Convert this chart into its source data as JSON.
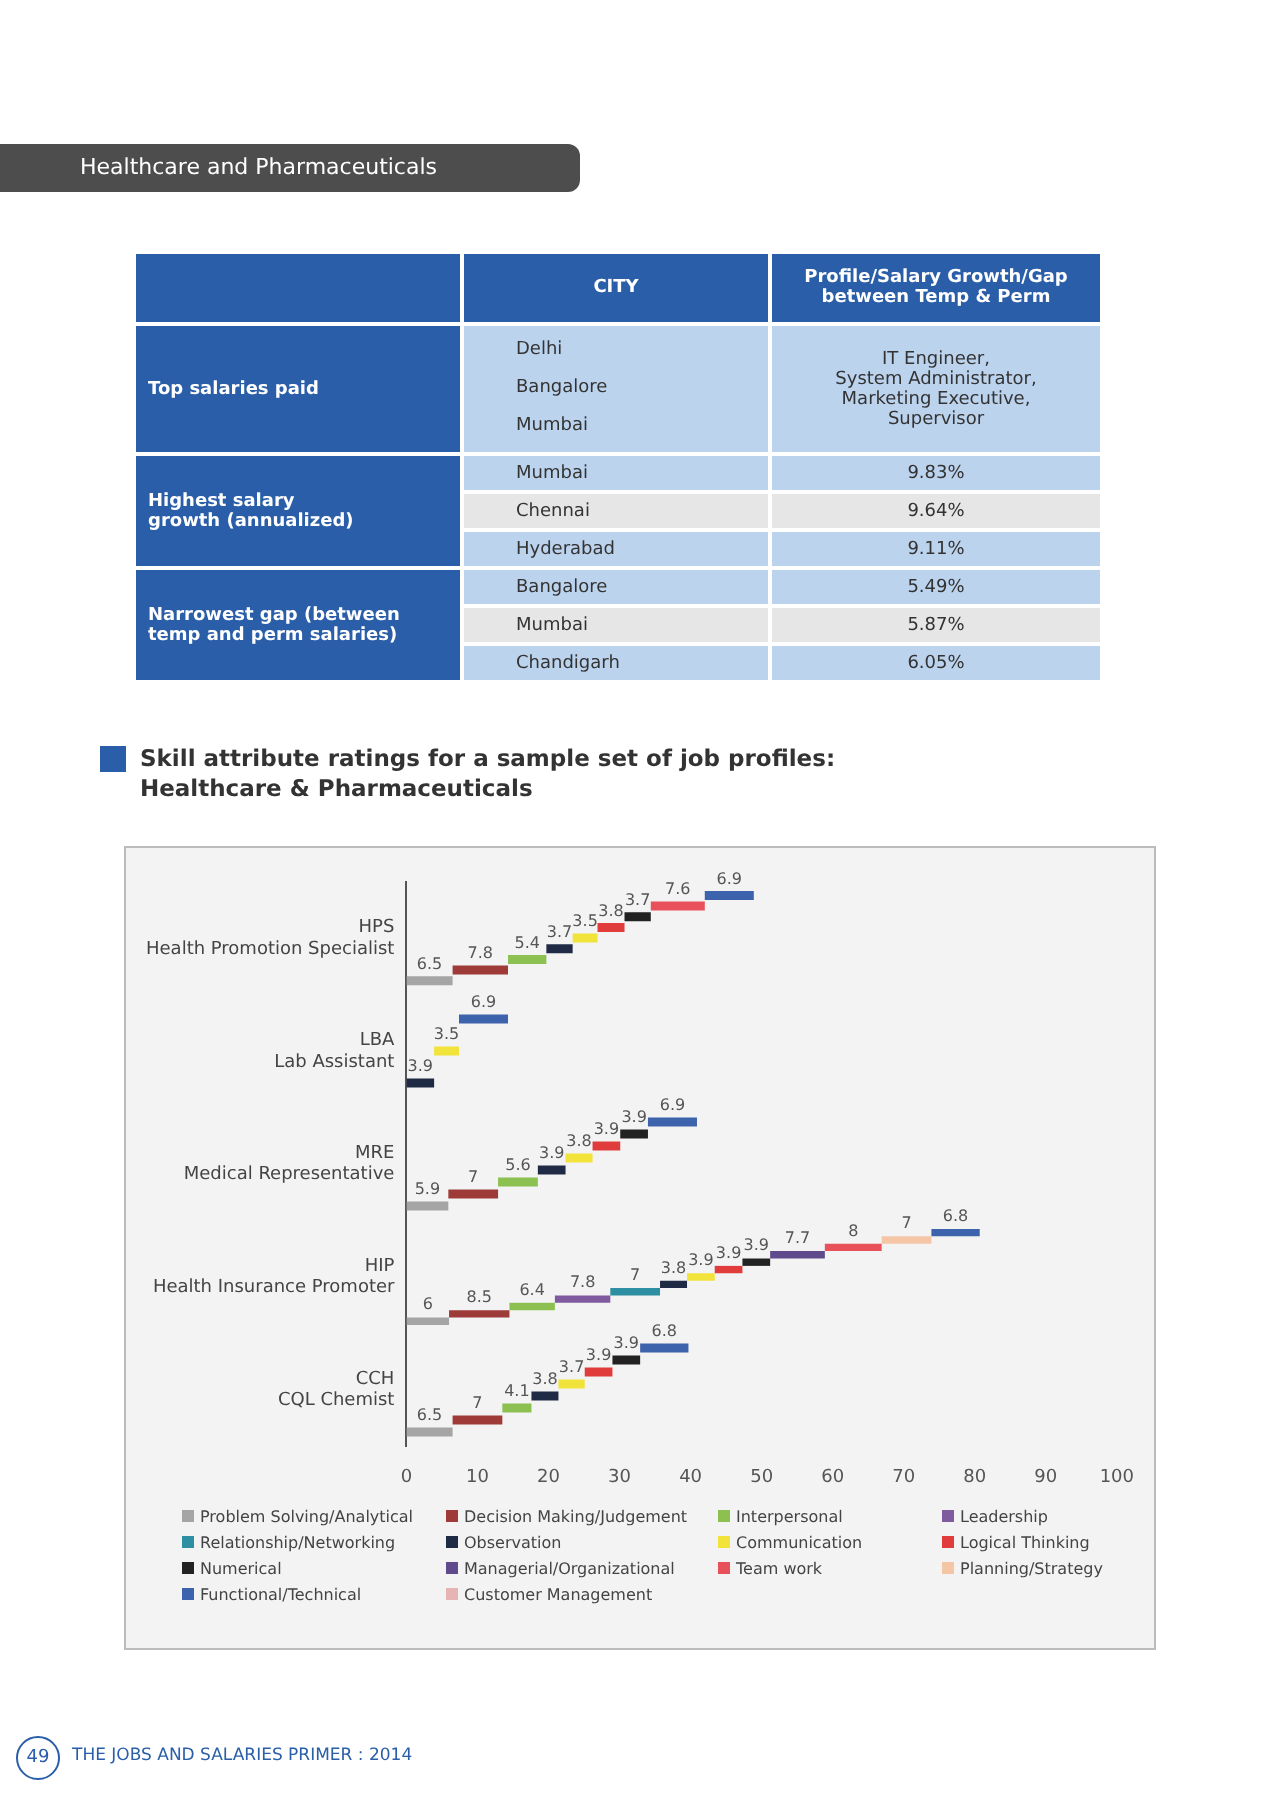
{
  "chart_data": [
    {
      "type": "other",
      "title": "Healthcare and Pharmaceuticals",
      "annotations": [
        "CITY",
        "Profile/Salary Growth/Gap between Temp & Perm",
        "Top salaries paid",
        "Delhi\nBangalore\nMumbai",
        "IT Engineer,\nSystem Administrator,\nMarketing Executive,\nSupervisor",
        "Highest salary\ngrowth (annualized)",
        "Mumbai",
        "9.83%",
        "Chennai",
        "9.64%",
        "Hyderabad",
        "9.11%",
        "Narrowest gap (between\ntemp and perm salaries)",
        "Bangalore",
        "5.49%",
        "Mumbai",
        "5.87%",
        "Chandigarh",
        "6.05%",
        "49",
        "THE JOBS AND SALARIES PRIMER : 2014"
      ]
    },
    {
      "type": "bar",
      "orientation": "horizontal",
      "stacked": true,
      "title": "Skill attribute ratings for a sample set of job profiles:\nHealthcare & Pharmaceuticals",
      "categories": [
        "HPS\nHealth Promotion Specialist",
        "LBA\nLab Assistant",
        "MRE\nMedical Representative",
        "HIP\nHealth Insurance Promoter",
        "CCH\nCQL Chemist"
      ],
      "series": [
        {
          "name": "Problem Solving/Analytical",
          "color": "#a5a5a5",
          "values": [
            6.5,
            null,
            5.9,
            6,
            6.5
          ]
        },
        {
          "name": "Decision Making/Judgement",
          "color": "#9e3a38",
          "values": [
            7.8,
            null,
            7,
            8.5,
            7
          ]
        },
        {
          "name": "Interpersonal",
          "color": "#8cc152",
          "values": [
            5.4,
            null,
            5.6,
            6.4,
            4.1
          ]
        },
        {
          "name": "Leadership",
          "color": "#7e5a9e",
          "values": [
            null,
            null,
            null,
            7.8,
            null
          ]
        },
        {
          "name": "Relationship/Networking",
          "color": "#2e8fa3",
          "values": [
            null,
            null,
            null,
            7,
            null
          ]
        },
        {
          "name": "Observation",
          "color": "#1f2a44",
          "values": [
            3.7,
            3.9,
            3.9,
            3.8,
            3.8
          ]
        },
        {
          "name": "Communication",
          "color": "#f2e33a",
          "values": [
            3.5,
            3.5,
            3.8,
            3.9,
            3.7
          ]
        },
        {
          "name": "Logical Thinking",
          "color": "#e03c3c",
          "values": [
            3.8,
            null,
            3.9,
            3.9,
            3.9
          ]
        },
        {
          "name": "Numerical",
          "color": "#222222",
          "values": [
            3.7,
            null,
            3.9,
            3.9,
            3.9
          ]
        },
        {
          "name": "Managerial/Organizational",
          "color": "#5f4a8b",
          "values": [
            null,
            null,
            null,
            7.7,
            null
          ]
        },
        {
          "name": "Team work",
          "color": "#e8505a",
          "values": [
            7.6,
            null,
            null,
            8,
            null
          ]
        },
        {
          "name": "Planning/Strategy",
          "color": "#f5c6a5",
          "values": [
            null,
            null,
            null,
            7,
            null
          ]
        },
        {
          "name": "Functional/Technical",
          "color": "#3e63ad",
          "values": [
            6.9,
            6.9,
            6.9,
            6.8,
            6.8
          ]
        },
        {
          "name": "Customer Management",
          "color": "#e6b4b4",
          "values": [
            null,
            null,
            null,
            null,
            null
          ]
        }
      ],
      "xlim": [
        0,
        100
      ],
      "xticks": [
        0,
        10,
        20,
        30,
        40,
        50,
        60,
        70,
        80,
        90,
        100
      ],
      "grid": false,
      "legend": "bottom",
      "data_labels": true
    }
  ]
}
